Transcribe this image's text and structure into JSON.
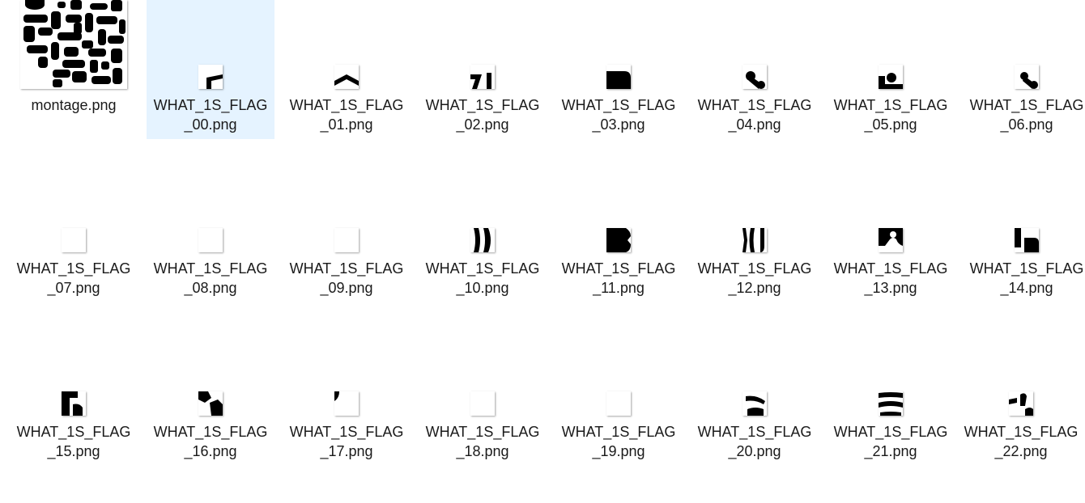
{
  "folder": {
    "files": [
      {
        "name_line1": "montage.png",
        "name_line2": "",
        "icon": "montage-thumbnail",
        "selected": false
      },
      {
        "name_line1": "WHAT_1S_FLAG",
        "name_line2": "_00.png",
        "icon": "image-thumbnail",
        "selected": true
      },
      {
        "name_line1": "WHAT_1S_FLAG",
        "name_line2": "_01.png",
        "icon": "image-thumbnail",
        "selected": false
      },
      {
        "name_line1": "WHAT_1S_FLAG",
        "name_line2": "_02.png",
        "icon": "image-thumbnail",
        "selected": false
      },
      {
        "name_line1": "WHAT_1S_FLAG",
        "name_line2": "_03.png",
        "icon": "image-thumbnail",
        "selected": false
      },
      {
        "name_line1": "WHAT_1S_FLAG",
        "name_line2": "_04.png",
        "icon": "image-thumbnail",
        "selected": false
      },
      {
        "name_line1": "WHAT_1S_FLAG",
        "name_line2": "_05.png",
        "icon": "image-thumbnail",
        "selected": false
      },
      {
        "name_line1": "WHAT_1S_FLAG",
        "name_line2": "_06.png",
        "icon": "image-thumbnail",
        "selected": false
      },
      {
        "name_line1": "WHAT_1S_FLAG",
        "name_line2": "_07.png",
        "icon": "image-thumbnail",
        "selected": false
      },
      {
        "name_line1": "WHAT_1S_FLAG",
        "name_line2": "_08.png",
        "icon": "image-thumbnail",
        "selected": false
      },
      {
        "name_line1": "WHAT_1S_FLAG",
        "name_line2": "_09.png",
        "icon": "image-thumbnail",
        "selected": false
      },
      {
        "name_line1": "WHAT_1S_FLAG",
        "name_line2": "_10.png",
        "icon": "image-thumbnail",
        "selected": false
      },
      {
        "name_line1": "WHAT_1S_FLAG",
        "name_line2": "_11.png",
        "icon": "image-thumbnail",
        "selected": false
      },
      {
        "name_line1": "WHAT_1S_FLAG",
        "name_line2": "_12.png",
        "icon": "image-thumbnail",
        "selected": false
      },
      {
        "name_line1": "WHAT_1S_FLAG",
        "name_line2": "_13.png",
        "icon": "image-thumbnail",
        "selected": false
      },
      {
        "name_line1": "WHAT_1S_FLAG",
        "name_line2": "_14.png",
        "icon": "image-thumbnail",
        "selected": false
      },
      {
        "name_line1": "WHAT_1S_FLAG",
        "name_line2": "_15.png",
        "icon": "image-thumbnail",
        "selected": false
      },
      {
        "name_line1": "WHAT_1S_FLAG",
        "name_line2": "_16.png",
        "icon": "image-thumbnail",
        "selected": false
      },
      {
        "name_line1": "WHAT_1S_FLAG",
        "name_line2": "_17.png",
        "icon": "image-thumbnail",
        "selected": false
      },
      {
        "name_line1": "WHAT_1S_FLAG",
        "name_line2": "_18.png",
        "icon": "image-thumbnail",
        "selected": false
      },
      {
        "name_line1": "WHAT_1S_FLAG",
        "name_line2": "_19.png",
        "icon": "image-thumbnail",
        "selected": false
      },
      {
        "name_line1": "WHAT_1S_FLAG",
        "name_line2": "_20.png",
        "icon": "image-thumbnail",
        "selected": false
      },
      {
        "name_line1": "WHAT_1S_FLAG",
        "name_line2": "_21.png",
        "icon": "image-thumbnail",
        "selected": false
      },
      {
        "name_line1": "WHAT_1S_FLAG",
        "name_line2": "_22.png",
        "icon": "image-thumbnail",
        "selected": false
      }
    ]
  },
  "colors": {
    "selection_background": "#e5f3ff",
    "text": "#1a1a1a",
    "thumb_ink": "#000000"
  }
}
